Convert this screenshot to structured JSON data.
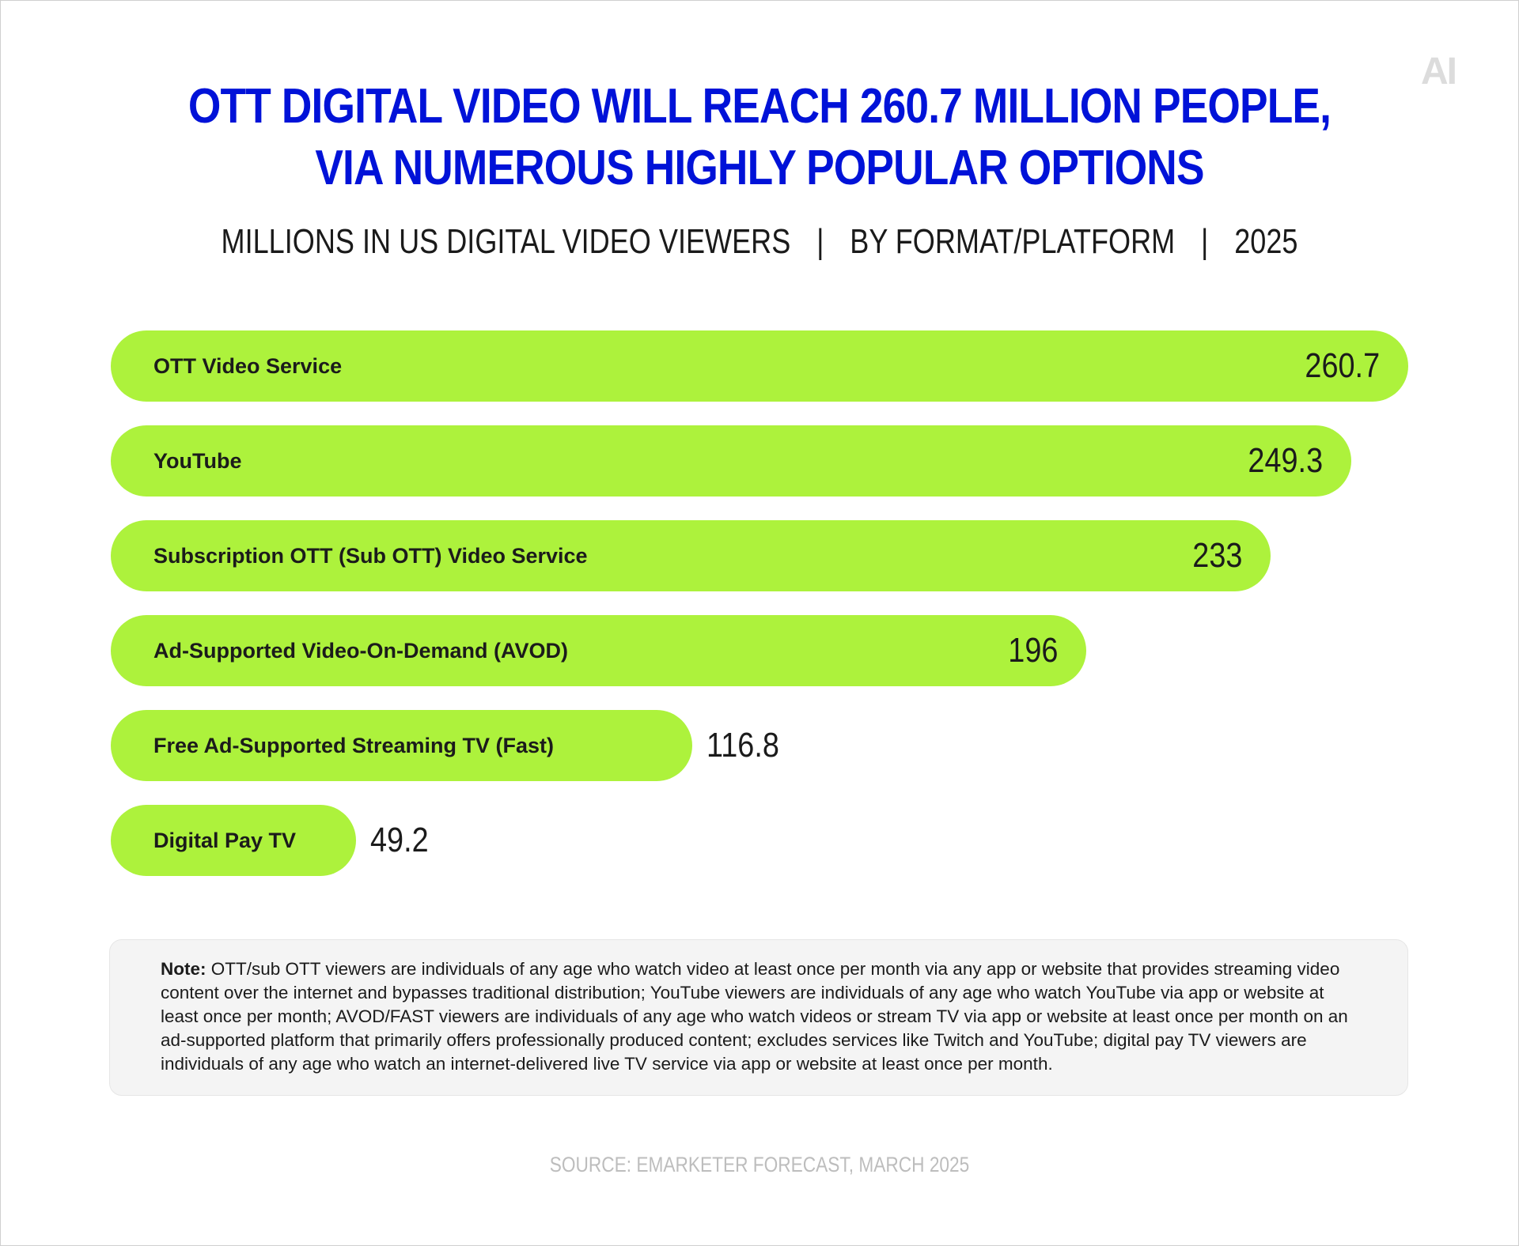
{
  "logo": {
    "text": "AI"
  },
  "header": {
    "title_line1": "OTT DIGITAL VIDEO WILL REACH 260.7 MILLION PEOPLE,",
    "title_line2": "VIA NUMEROUS HIGHLY POPULAR OPTIONS",
    "subtitle_part1": "MILLIONS IN US DIGITAL VIDEO VIEWERS",
    "subtitle_part2": "BY FORMAT/PLATFORM",
    "subtitle_part3": "2025",
    "separator": "|"
  },
  "chart_data": {
    "type": "bar",
    "orientation": "horizontal",
    "categories": [
      "OTT Video Service",
      "YouTube",
      "Subscription OTT (Sub OTT) Video Service",
      "Ad-Supported Video-On-Demand (AVOD)",
      "Free Ad-Supported Streaming TV (Fast)",
      "Digital Pay TV"
    ],
    "values": [
      260.7,
      249.3,
      233,
      196,
      116.8,
      49.2
    ],
    "value_labels": [
      "260.7",
      "249.3",
      "233",
      "196",
      "116.8",
      "49.2"
    ],
    "title": "OTT DIGITAL VIDEO WILL REACH 260.7 MILLION PEOPLE, VIA NUMEROUS HIGHLY POPULAR OPTIONS",
    "subtitle": "MILLIONS IN US DIGITAL VIDEO VIEWERS | BY FORMAT/PLATFORM | 2025",
    "xlabel": "",
    "ylabel": "",
    "grid": false,
    "legend": "none",
    "bar_color": "#adf23c"
  },
  "note": {
    "label": "Note:",
    "text": "OTT/sub OTT viewers are individuals of any age who watch video at least once per month via any app or website that provides streaming video content over the internet and bypasses traditional distribution; YouTube viewers are individuals of any age who watch YouTube via app or website at least once per month; AVOD/FAST viewers are individuals of any age who watch videos or stream TV via app or website at least once per month on an ad-supported platform that primarily offers professionally produced content; excludes services like Twitch and YouTube; digital pay TV viewers are individuals of any age who watch an internet-delivered live TV service via app or website at least once per month."
  },
  "source": {
    "text": "SOURCE: EMARKETER FORECAST, MARCH 2025"
  },
  "colors": {
    "title": "#0012d8",
    "bar": "#adf23c",
    "text": "#1b1b1b",
    "source": "#bdbdbd",
    "note_bg": "#f4f4f4"
  }
}
